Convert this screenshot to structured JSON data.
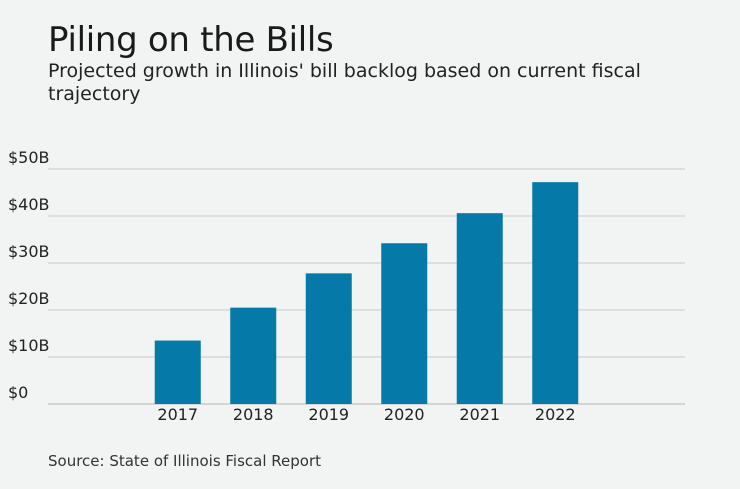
{
  "chart_data": {
    "type": "bar",
    "title": "Piling on the Bills",
    "subtitle": "Projected growth in Illinois' bill backlog based on current fiscal trajectory",
    "categories": [
      "2017",
      "2018",
      "2019",
      "2020",
      "2021",
      "2022"
    ],
    "values": [
      13.5,
      20.5,
      27.8,
      34.2,
      40.6,
      47.2
    ],
    "units": "billions USD",
    "ylim": [
      0,
      50
    ],
    "y_ticks": [
      {
        "value": 0,
        "label": "$0"
      },
      {
        "value": 10,
        "label": "$10B"
      },
      {
        "value": 20,
        "label": "$20B"
      },
      {
        "value": 30,
        "label": "$30B"
      },
      {
        "value": 40,
        "label": "$40B"
      },
      {
        "value": 50,
        "label": "$50B"
      }
    ],
    "grid": true,
    "bar_color": "#0579a8",
    "source": "Source: State of Illinois Fiscal Report"
  }
}
